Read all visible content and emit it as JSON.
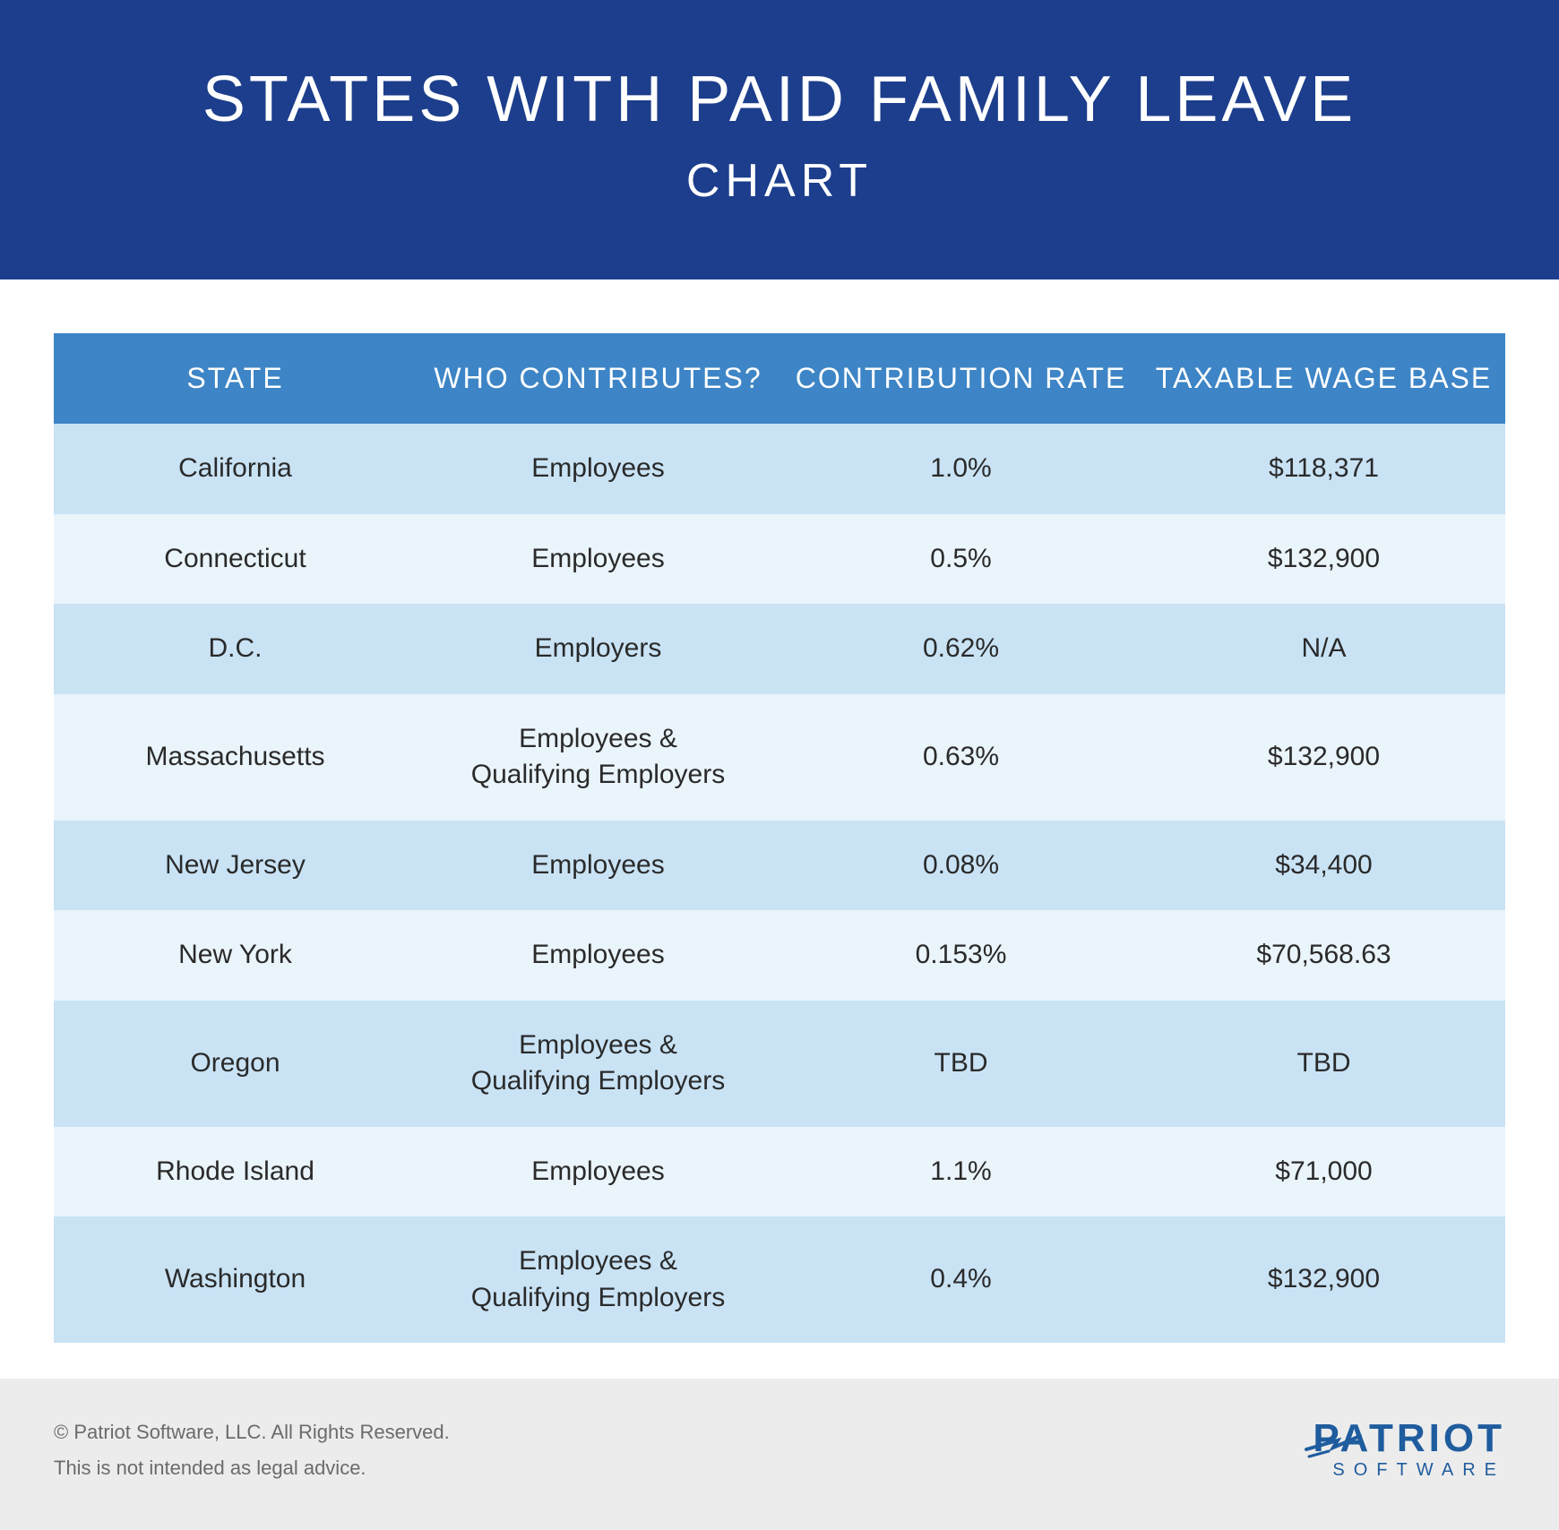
{
  "header": {
    "title": "STATES WITH PAID FAMILY LEAVE",
    "subtitle": "CHART",
    "background_color": "#1c3e8c",
    "text_color": "#ffffff",
    "title_fontsize": 72,
    "subtitle_fontsize": 52
  },
  "table": {
    "type": "table",
    "header_background": "#3d85c6",
    "header_text_color": "#ffffff",
    "header_fontsize": 32,
    "row_odd_color": "#c9e3f5",
    "row_even_color": "#eaf4fb",
    "cell_text_color": "#2a2a2a",
    "cell_fontsize": 30,
    "columns": [
      "STATE",
      "WHO CONTRIBUTES?",
      "CONTRIBUTION RATE",
      "TAXABLE WAGE BASE"
    ],
    "rows": [
      [
        "California",
        "Employees",
        "1.0%",
        "$118,371"
      ],
      [
        "Connecticut",
        "Employees",
        "0.5%",
        "$132,900"
      ],
      [
        "D.C.",
        "Employers",
        "0.62%",
        "N/A"
      ],
      [
        "Massachusetts",
        "Employees &\nQualifying Employers",
        "0.63%",
        "$132,900"
      ],
      [
        "New Jersey",
        "Employees",
        "0.08%",
        "$34,400"
      ],
      [
        "New York",
        "Employees",
        "0.153%",
        "$70,568.63"
      ],
      [
        "Oregon",
        "Employees &\nQualifying Employers",
        "TBD",
        "TBD"
      ],
      [
        "Rhode Island",
        "Employees",
        "1.1%",
        "$71,000"
      ],
      [
        "Washington",
        "Employees &\nQualifying Employers",
        "0.4%",
        "$132,900"
      ]
    ]
  },
  "footer": {
    "background_color": "#ececec",
    "text_color": "#6b6b6b",
    "fontsize": 22,
    "copyright": "© Patriot Software, LLC. All Rights Reserved.",
    "disclaimer": "This is not intended as legal advice.",
    "logo_top": "PATRIOT",
    "logo_bottom": "SOFTWARE",
    "logo_color": "#1f5c9e",
    "logo_top_fontsize": 44,
    "logo_bottom_fontsize": 20
  }
}
